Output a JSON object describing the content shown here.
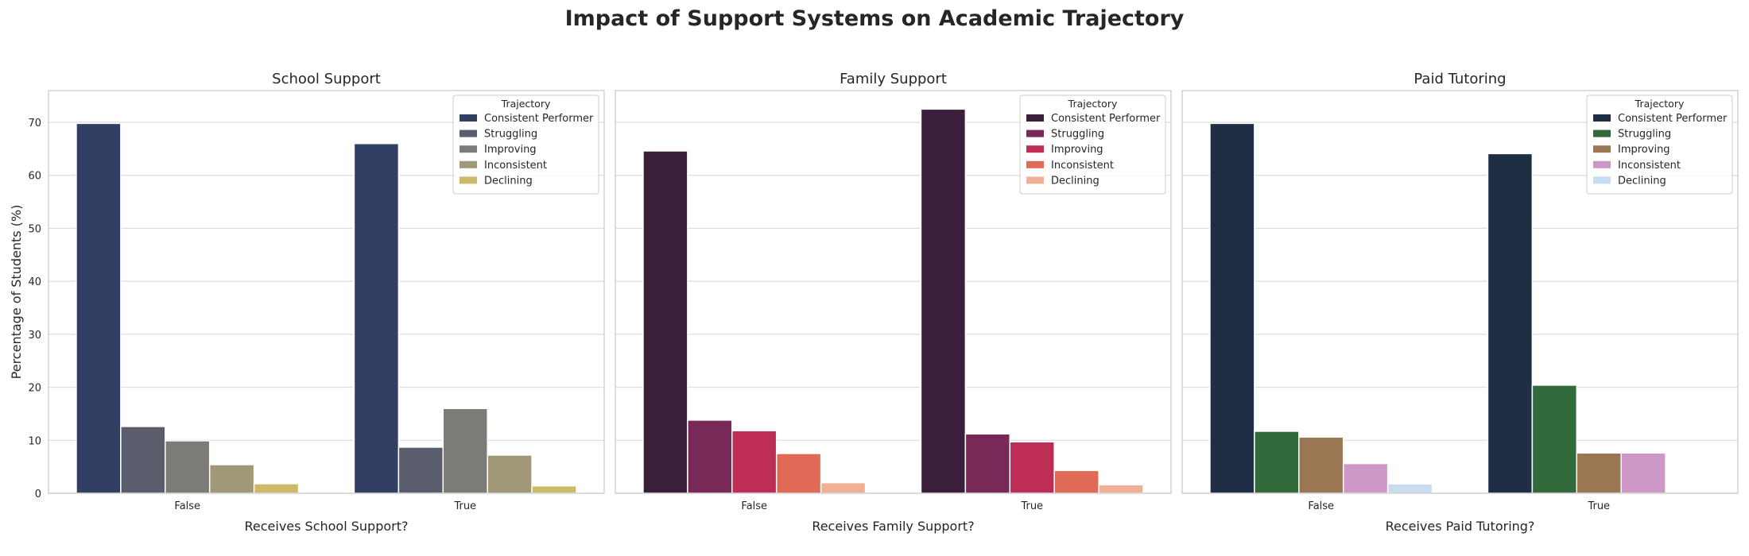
{
  "title": "Impact of Support Systems on Academic Trajectory",
  "shared_ylabel": "Percentage of Students (%)",
  "chart_data": [
    {
      "type": "bar",
      "title": "School Support",
      "xlabel": "Receives School Support?",
      "ylabel": "Percentage of Students (%)",
      "categories": [
        "False",
        "True"
      ],
      "ylim": [
        0,
        76
      ],
      "yticks": [
        0,
        10,
        20,
        30,
        40,
        50,
        60,
        70
      ],
      "grid": true,
      "legend_title": "Trajectory",
      "legend_position": "top-right",
      "series": [
        {
          "name": "Consistent Performer",
          "color": "#323f64",
          "values": [
            69.8,
            66.0
          ]
        },
        {
          "name": "Struggling",
          "color": "#5a5d6b",
          "values": [
            12.6,
            8.7
          ]
        },
        {
          "name": "Improving",
          "color": "#7d7b78",
          "values": [
            9.9,
            16.0
          ]
        },
        {
          "name": "Inconsistent",
          "color": "#a19877",
          "values": [
            5.4,
            7.2
          ]
        },
        {
          "name": "Declining",
          "color": "#cdba66",
          "values": [
            1.8,
            1.4
          ]
        }
      ]
    },
    {
      "type": "bar",
      "title": "Family Support",
      "xlabel": "Receives Family Support?",
      "ylabel": "",
      "categories": [
        "False",
        "True"
      ],
      "ylim": [
        0,
        76
      ],
      "yticks": [
        0,
        10,
        20,
        30,
        40,
        50,
        60,
        70
      ],
      "grid": true,
      "legend_title": "Trajectory",
      "legend_position": "top-right",
      "series": [
        {
          "name": "Consistent Performer",
          "color": "#3a1f3a",
          "values": [
            64.6,
            72.5
          ]
        },
        {
          "name": "Struggling",
          "color": "#782957",
          "values": [
            13.8,
            11.2
          ]
        },
        {
          "name": "Improving",
          "color": "#bd2d55",
          "values": [
            11.8,
            9.7
          ]
        },
        {
          "name": "Inconsistent",
          "color": "#e06a55",
          "values": [
            7.5,
            4.3
          ]
        },
        {
          "name": "Declining",
          "color": "#efb095",
          "values": [
            2.0,
            1.6
          ]
        }
      ]
    },
    {
      "type": "bar",
      "title": "Paid Tutoring",
      "xlabel": "Receives Paid Tutoring?",
      "ylabel": "",
      "categories": [
        "False",
        "True"
      ],
      "ylim": [
        0,
        76
      ],
      "yticks": [
        0,
        10,
        20,
        30,
        40,
        50,
        60,
        70
      ],
      "grid": true,
      "legend_title": "Trajectory",
      "legend_position": "top-right",
      "series": [
        {
          "name": "Consistent Performer",
          "color": "#1f2d45",
          "values": [
            69.8,
            64.1
          ]
        },
        {
          "name": "Struggling",
          "color": "#336a3c",
          "values": [
            11.7,
            20.4
          ]
        },
        {
          "name": "Improving",
          "color": "#9a7652",
          "values": [
            10.6,
            7.6
          ]
        },
        {
          "name": "Inconsistent",
          "color": "#cd97c6",
          "values": [
            5.6,
            7.6
          ]
        },
        {
          "name": "Declining",
          "color": "#c8dcf0",
          "values": [
            1.8,
            0
          ]
        }
      ]
    }
  ]
}
